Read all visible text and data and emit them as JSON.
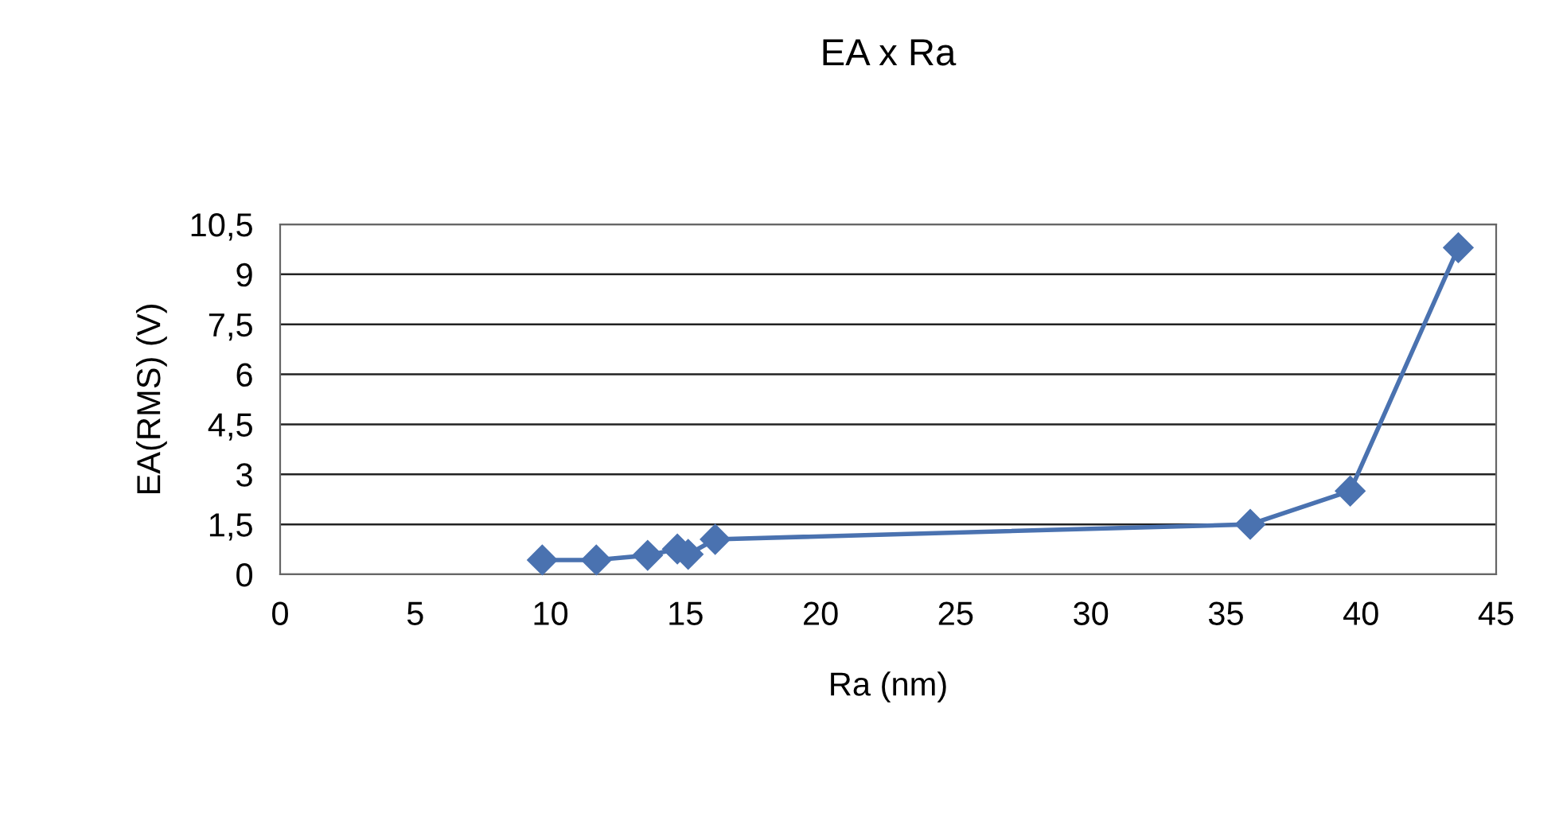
{
  "chart_data": {
    "type": "line",
    "title": "EA x Ra",
    "xlabel": "Ra (nm)",
    "ylabel": "EA(RMS) (V)",
    "x": [
      9.7,
      11.7,
      13.6,
      14.7,
      15.1,
      16.1,
      35.9,
      39.6,
      43.6
    ],
    "series": [
      {
        "color": "#4a72b0",
        "values": [
          0.43,
          0.43,
          0.57,
          0.76,
          0.6,
          1.05,
          1.5,
          2.5,
          9.8
        ]
      }
    ],
    "xlim": [
      0,
      45
    ],
    "xticks": [
      0,
      5,
      10,
      15,
      20,
      25,
      30,
      35,
      40,
      45
    ],
    "ylim": [
      0,
      10.5
    ],
    "yticks": [
      0,
      {
        "value": 1.5,
        "label": "1,5"
      },
      3,
      {
        "value": 4.5,
        "label": "4,5"
      },
      6,
      {
        "value": 7.5,
        "label": "7,5"
      },
      9,
      {
        "value": 10.5,
        "label": "10,5"
      }
    ],
    "grid": "y",
    "marker": "diamond",
    "line_style": "solid",
    "legend": false
  }
}
